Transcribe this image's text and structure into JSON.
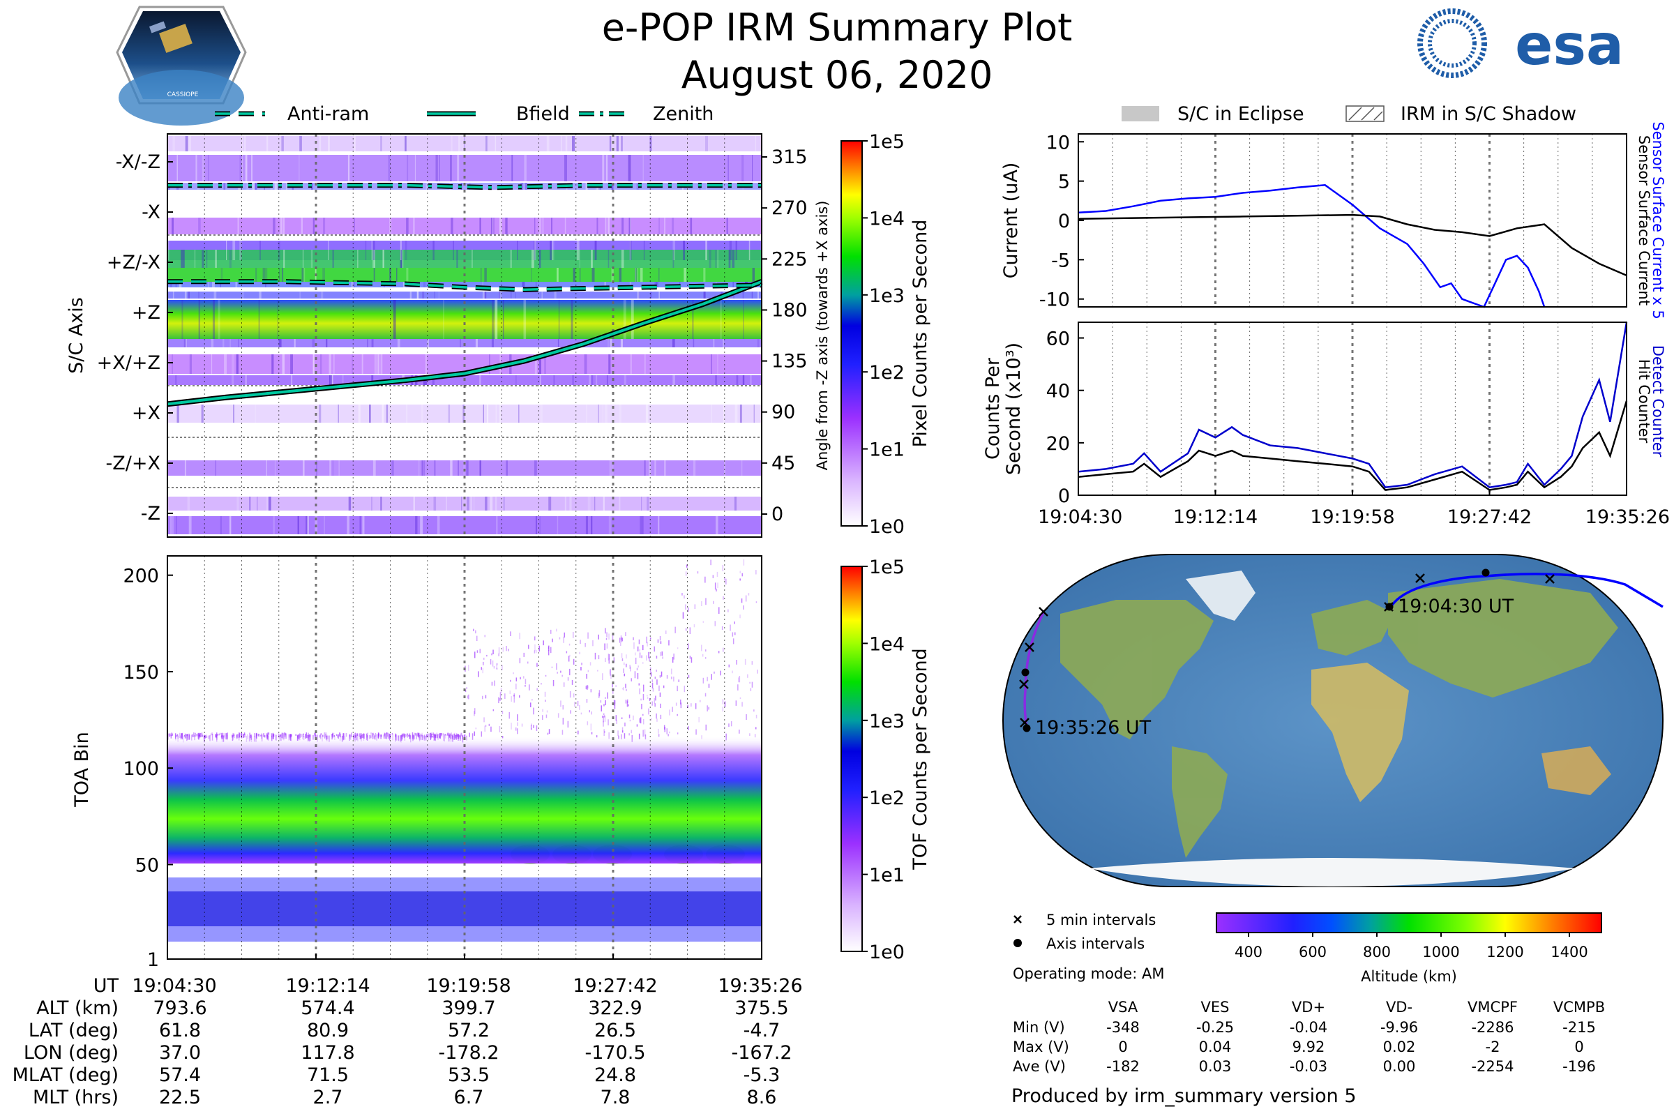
{
  "header": {
    "title": "e-POP IRM Summary Plot",
    "date": "August 06, 2020",
    "cassiope_label": "CASSIOPE",
    "esa_text": "esa"
  },
  "legends": {
    "top_left": [
      "Anti-ram",
      "Bfield",
      "Zenith"
    ],
    "top_right": [
      "S/C in Eclipse",
      "IRM in S/C Shadow"
    ],
    "map": [
      "5 min intervals",
      "Axis intervals"
    ]
  },
  "colors": {
    "bfield_line": "#00c8a0",
    "detect": "#0000cc",
    "hit": "#000000",
    "current_blue": "#0000ff",
    "track_blue": "#0000ff",
    "track_purple": "#8a2be2"
  },
  "chart_data": [
    {
      "id": "pixel-panel",
      "type": "heatmap",
      "ylabel": "S/C Axis",
      "y_ticks": [
        "-X/-Z",
        "-X",
        "+Z/-X",
        "+Z",
        "+X/+Z",
        "+X",
        "-Z/+X",
        "-Z"
      ],
      "right_axis_label": "Angle from -Z axis (towards +X axis)",
      "right_ticks": [
        315,
        270,
        225,
        180,
        135,
        90,
        45,
        0
      ],
      "colorbar_label": "Pixel Counts per Second",
      "colorbar_ticks": [
        "1e5",
        "1e4",
        "1e3",
        "1e2",
        "1e1",
        "1e0"
      ],
      "lines": {
        "bfield": {
          "x": [
            0,
            0.1,
            0.2,
            0.3,
            0.4,
            0.5,
            0.6,
            0.7,
            0.8,
            0.9,
            1.0
          ],
          "y": [
            97,
            103,
            108,
            113,
            118,
            124,
            135,
            150,
            168,
            185,
            205
          ]
        },
        "antiram": {
          "x": [
            0,
            0.2,
            0.4,
            0.5,
            0.6,
            0.8,
            1.0
          ],
          "y": [
            205,
            205,
            203,
            200,
            198,
            200,
            202
          ]
        },
        "zenith": {
          "x": [
            0,
            0.2,
            0.4,
            0.55,
            0.7,
            0.85,
            1.0
          ],
          "y": [
            290,
            290,
            290,
            288,
            290,
            290,
            290
          ]
        }
      }
    },
    {
      "id": "toa-panel",
      "type": "heatmap",
      "ylabel": "TOA Bin",
      "y_ticks": [
        200,
        150,
        100,
        50,
        1
      ],
      "ylim": [
        1,
        210
      ],
      "colorbar_label": "TOF Counts per Second",
      "colorbar_ticks": [
        "1e5",
        "1e4",
        "1e3",
        "1e2",
        "1e1",
        "1e0"
      ]
    },
    {
      "id": "current-panel",
      "type": "line",
      "ylabel": "Current (uA)",
      "right_labels": [
        "Sensor Surface Current x 5",
        "Sensor Surface Current"
      ],
      "y_ticks": [
        10,
        5,
        0,
        -5,
        -10
      ],
      "ylim": [
        -11,
        11
      ],
      "series": [
        {
          "name": "Sensor Surface Current x 5",
          "color": "#0000ff",
          "x": [
            0,
            0.05,
            0.1,
            0.15,
            0.2,
            0.25,
            0.3,
            0.35,
            0.4,
            0.45,
            0.5,
            0.55,
            0.6,
            0.63,
            0.66,
            0.68,
            0.7,
            0.72,
            0.74,
            0.76,
            0.78,
            0.8,
            0.82,
            0.84,
            0.85
          ],
          "y": [
            1,
            1.2,
            1.8,
            2.5,
            2.8,
            3.0,
            3.5,
            3.8,
            4.2,
            4.5,
            2.0,
            -1.0,
            -3.0,
            -5.5,
            -8.5,
            -8.0,
            -10.0,
            -10.5,
            -11.0,
            -8.0,
            -5.0,
            -4.5,
            -6.0,
            -9.0,
            -11.0
          ]
        },
        {
          "name": "Sensor Surface Current",
          "color": "#000000",
          "x": [
            0,
            0.1,
            0.2,
            0.3,
            0.4,
            0.5,
            0.55,
            0.6,
            0.65,
            0.7,
            0.75,
            0.8,
            0.85,
            0.9,
            0.95,
            1.0
          ],
          "y": [
            0.2,
            0.3,
            0.4,
            0.5,
            0.6,
            0.7,
            0.5,
            -0.5,
            -1.2,
            -1.5,
            -2.0,
            -1.0,
            -0.5,
            -3.5,
            -5.5,
            -7.0
          ]
        }
      ]
    },
    {
      "id": "counts-panel",
      "type": "line",
      "ylabel": "Counts Per Second (x10³)",
      "right_labels": [
        "Detect Counter",
        "Hit Counter"
      ],
      "y_ticks": [
        60,
        40,
        20,
        0
      ],
      "ylim": [
        0,
        66
      ],
      "categories": [
        "19:04:30",
        "19:12:14",
        "19:19:58",
        "19:27:42",
        "19:35:26"
      ],
      "series": [
        {
          "name": "Detect Counter",
          "color": "#0000cc",
          "x": [
            0,
            0.05,
            0.1,
            0.12,
            0.15,
            0.2,
            0.22,
            0.25,
            0.28,
            0.3,
            0.35,
            0.4,
            0.45,
            0.5,
            0.53,
            0.56,
            0.6,
            0.65,
            0.7,
            0.75,
            0.78,
            0.8,
            0.82,
            0.85,
            0.88,
            0.9,
            0.92,
            0.95,
            0.97,
            1.0
          ],
          "y": [
            9,
            10,
            12,
            16,
            9,
            16,
            25,
            22,
            26,
            23,
            19,
            18,
            16,
            14,
            12,
            3,
            4,
            8,
            11,
            3,
            4,
            5,
            12,
            4,
            10,
            15,
            30,
            44,
            28,
            66
          ]
        },
        {
          "name": "Hit Counter",
          "color": "#000000",
          "x": [
            0,
            0.05,
            0.1,
            0.12,
            0.15,
            0.2,
            0.22,
            0.25,
            0.28,
            0.3,
            0.35,
            0.4,
            0.45,
            0.5,
            0.53,
            0.56,
            0.6,
            0.65,
            0.7,
            0.75,
            0.78,
            0.8,
            0.82,
            0.85,
            0.88,
            0.9,
            0.92,
            0.95,
            0.97,
            1.0
          ],
          "y": [
            7,
            8,
            9,
            12,
            7,
            13,
            17,
            15,
            17,
            15,
            14,
            13,
            12,
            11,
            9,
            2,
            3,
            6,
            9,
            2,
            3,
            4,
            9,
            3,
            7,
            11,
            18,
            24,
            15,
            36
          ]
        }
      ]
    },
    {
      "id": "altitude-colorbar",
      "type": "colorbar",
      "xlabel": "Altitude (km)",
      "ticks": [
        400,
        600,
        800,
        1000,
        1200,
        1400
      ],
      "range": [
        300,
        1500
      ]
    }
  ],
  "time_axis": [
    "19:04:30",
    "19:12:14",
    "19:19:58",
    "19:27:42",
    "19:35:26"
  ],
  "map": {
    "start_label": "19:04:30 UT",
    "end_label": "19:35:26 UT"
  },
  "ephemeris": {
    "rows": [
      {
        "label": "UT",
        "values": [
          "19:04:30",
          "19:12:14",
          "19:19:58",
          "19:27:42",
          "19:35:26"
        ]
      },
      {
        "label": "ALT (km)",
        "values": [
          "793.6",
          "574.4",
          "399.7",
          "322.9",
          "375.5"
        ]
      },
      {
        "label": "LAT (deg)",
        "values": [
          "61.8",
          "80.9",
          "57.2",
          "26.5",
          "-4.7"
        ]
      },
      {
        "label": "LON (deg)",
        "values": [
          "37.0",
          "117.8",
          "-178.2",
          "-170.5",
          "-167.2"
        ]
      },
      {
        "label": "MLAT (deg)",
        "values": [
          "57.4",
          "71.5",
          "53.5",
          "24.8",
          "-5.3"
        ]
      },
      {
        "label": "MLT (hrs)",
        "values": [
          "22.5",
          "2.7",
          "6.7",
          "7.8",
          "8.6"
        ]
      }
    ]
  },
  "operating_mode": "Operating mode: AM",
  "voltages": {
    "headers": [
      "VSA",
      "VES",
      "VD+",
      "VD-",
      "VMCPF",
      "VCMPB"
    ],
    "rows": [
      {
        "label": "Min (V)",
        "values": [
          "-348",
          "-0.25",
          "-0.04",
          "-9.96",
          "-2286",
          "-215"
        ]
      },
      {
        "label": "Max (V)",
        "values": [
          "0",
          "0.04",
          "9.92",
          "0.02",
          "-2",
          "0"
        ]
      },
      {
        "label": "Ave (V)",
        "values": [
          "-182",
          "0.03",
          "-0.03",
          "0.00",
          "-2254",
          "-196"
        ]
      }
    ]
  },
  "footer": "Produced by irm_summary version 5"
}
